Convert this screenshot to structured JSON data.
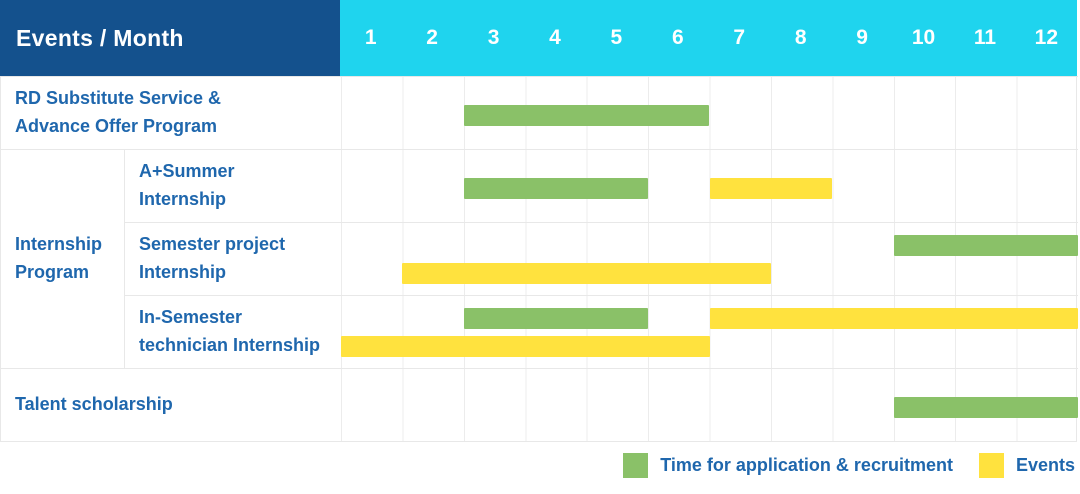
{
  "header": {
    "title": "Events / Month",
    "months": [
      "1",
      "2",
      "3",
      "4",
      "5",
      "6",
      "7",
      "8",
      "9",
      "10",
      "11",
      "12"
    ]
  },
  "group": {
    "label": "Internship Program"
  },
  "rows": {
    "0": {
      "label": "RD Substitute Service &\nAdvance Offer Program"
    },
    "1": {
      "label": "A+Summer\nInternship"
    },
    "2": {
      "label": "Semester project\nInternship"
    },
    "3": {
      "label": "In-Semester\ntechnician Internship"
    },
    "4": {
      "label": "Talent scholarship"
    }
  },
  "legend": {
    "items": [
      {
        "key": "application",
        "label": "Time for application & recruitment",
        "color": "#8ac168"
      },
      {
        "key": "events",
        "label": "Events",
        "color": "#ffe23e"
      }
    ]
  },
  "colors": {
    "header_bg": "#14518d",
    "months_bg": "#1fd4ee",
    "label_text": "#1f67ad",
    "application_green": "#8ac168",
    "events_yellow": "#ffe23e",
    "grid_line": "#ececec"
  },
  "chart_data": {
    "type": "gantt",
    "unit": "month",
    "x_domain": [
      1,
      12
    ],
    "x_ticks": [
      "1",
      "2",
      "3",
      "4",
      "5",
      "6",
      "7",
      "8",
      "9",
      "10",
      "11",
      "12"
    ],
    "legend_position": "bottom-right",
    "series_legend": [
      {
        "name": "Time for application & recruitment",
        "color": "#8ac168"
      },
      {
        "name": "Events",
        "color": "#ffe23e"
      }
    ],
    "rows": [
      {
        "group": null,
        "label": "RD Substitute Service & Advance Offer Program",
        "bars": [
          {
            "series": "application",
            "start_month": 3,
            "end_month": 6,
            "lane": "single"
          }
        ]
      },
      {
        "group": "Internship Program",
        "label": "A+Summer Internship",
        "bars": [
          {
            "series": "application",
            "start_month": 3,
            "end_month": 5,
            "lane": "single"
          },
          {
            "series": "events",
            "start_month": 7,
            "end_month": 8,
            "lane": "single"
          }
        ]
      },
      {
        "group": "Internship Program",
        "label": "Semester project Internship",
        "bars": [
          {
            "series": "application",
            "start_month": 10,
            "end_month": 12,
            "lane": "upper"
          },
          {
            "series": "events",
            "start_month": 2,
            "end_month": 7,
            "lane": "lower"
          }
        ]
      },
      {
        "group": "Internship Program",
        "label": "In-Semester technician Internship",
        "bars": [
          {
            "series": "application",
            "start_month": 3,
            "end_month": 5,
            "lane": "upper"
          },
          {
            "series": "events",
            "start_month": 7,
            "end_month": 12,
            "lane": "upper"
          },
          {
            "series": "events",
            "start_month": 1,
            "end_month": 6,
            "lane": "lower"
          }
        ]
      },
      {
        "group": null,
        "label": "Talent scholarship",
        "bars": [
          {
            "series": "application",
            "start_month": 10,
            "end_month": 12,
            "lane": "single"
          }
        ]
      }
    ]
  }
}
